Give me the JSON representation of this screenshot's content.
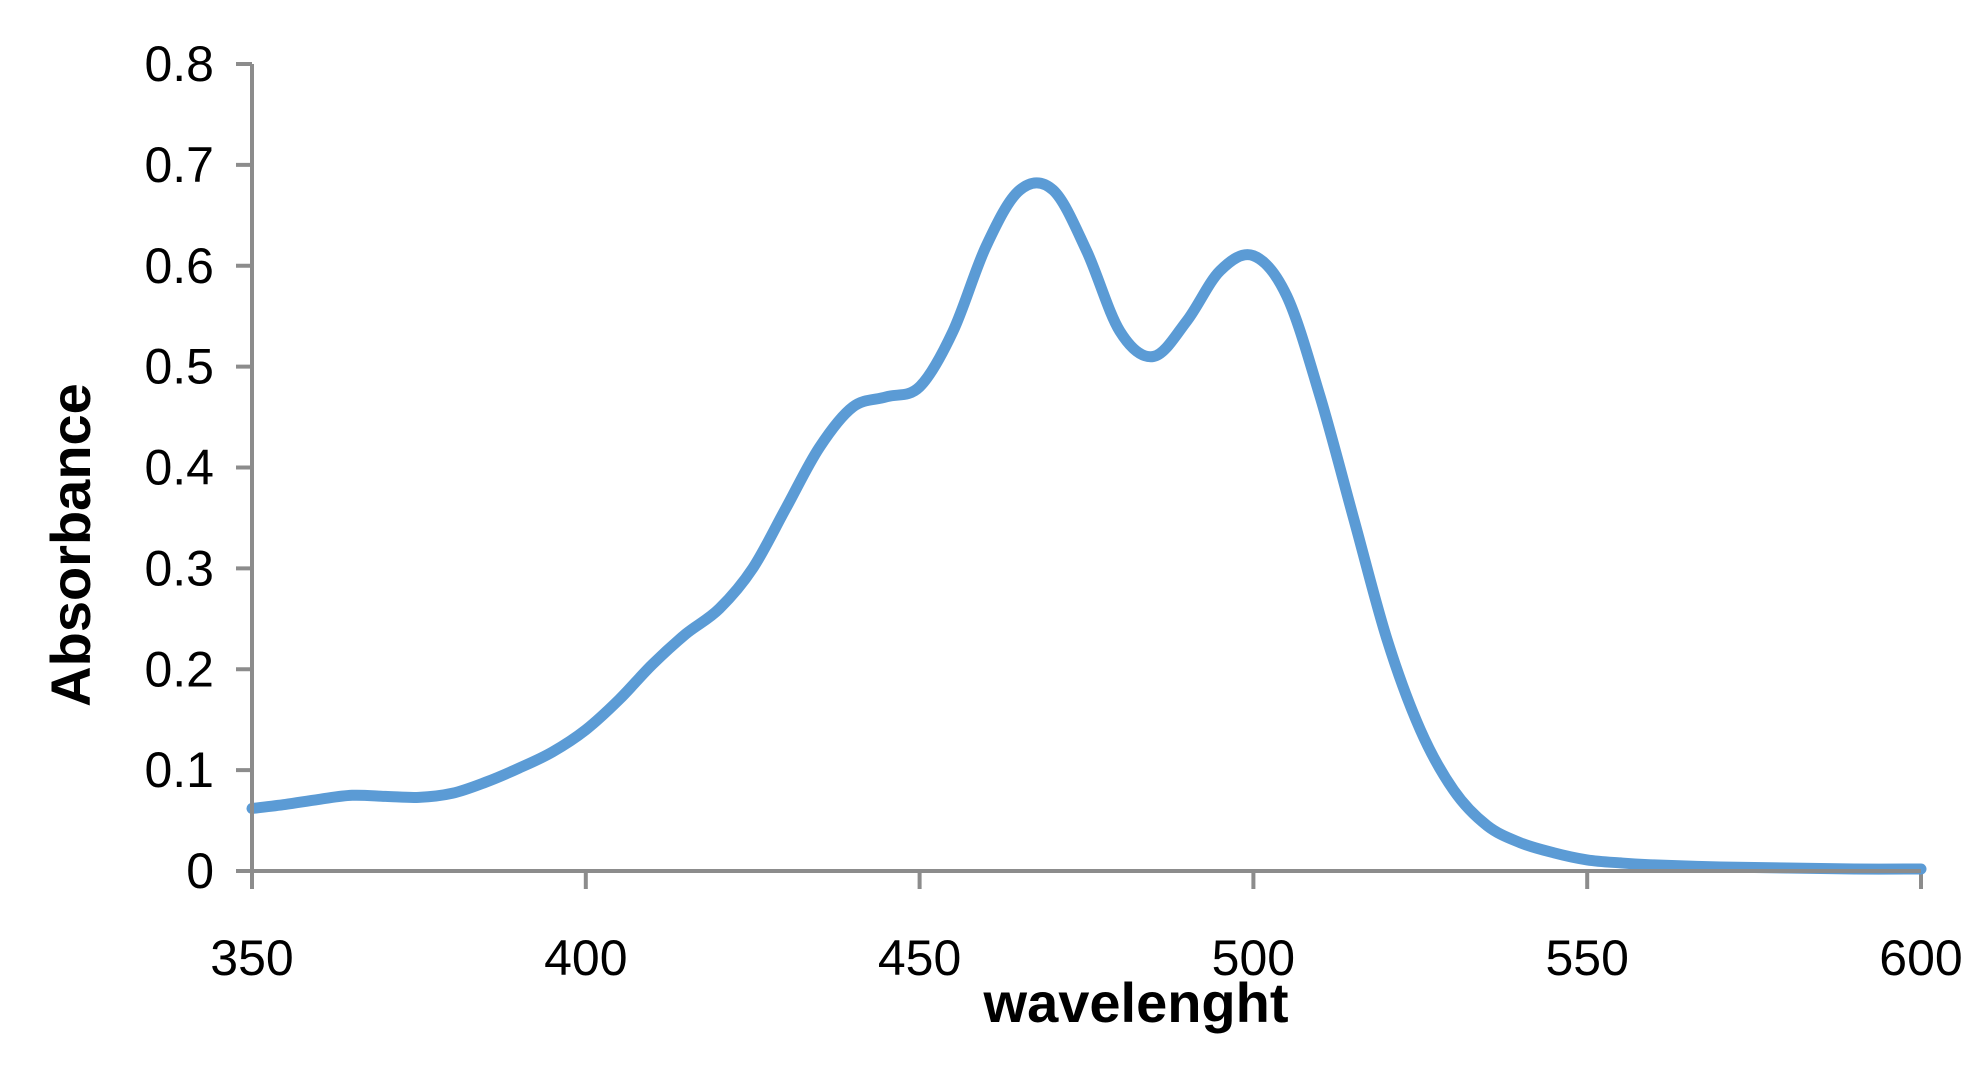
{
  "chart_data": {
    "type": "line",
    "title": "",
    "xlabel": "wavelenght",
    "ylabel": "Absorbance",
    "xlim": [
      350,
      600
    ],
    "ylim": [
      0,
      0.8
    ],
    "xticks": [
      "350",
      "400",
      "450",
      "500",
      "550",
      "600"
    ],
    "yticks": [
      "0",
      "0.1",
      "0.2",
      "0.3",
      "0.4",
      "0.5",
      "0.6",
      "0.7",
      "0.8"
    ],
    "grid": false,
    "legend": "none",
    "series": [
      {
        "color": "#5b9bd5",
        "x": [
          350,
          355,
          360,
          365,
          370,
          375,
          380,
          385,
          390,
          395,
          400,
          405,
          410,
          415,
          420,
          425,
          430,
          435,
          440,
          445,
          450,
          455,
          460,
          465,
          470,
          475,
          480,
          485,
          490,
          495,
          500,
          505,
          510,
          515,
          520,
          525,
          530,
          535,
          540,
          545,
          550,
          555,
          560,
          570,
          580,
          590,
          600
        ],
        "y": [
          0.062,
          0.066,
          0.071,
          0.075,
          0.074,
          0.073,
          0.077,
          0.088,
          0.102,
          0.118,
          0.14,
          0.17,
          0.205,
          0.235,
          0.26,
          0.3,
          0.36,
          0.42,
          0.46,
          0.47,
          0.48,
          0.535,
          0.62,
          0.675,
          0.675,
          0.615,
          0.535,
          0.51,
          0.545,
          0.595,
          0.61,
          0.57,
          0.47,
          0.35,
          0.23,
          0.14,
          0.08,
          0.045,
          0.028,
          0.018,
          0.011,
          0.008,
          0.006,
          0.004,
          0.003,
          0.002,
          0.002
        ]
      }
    ]
  }
}
